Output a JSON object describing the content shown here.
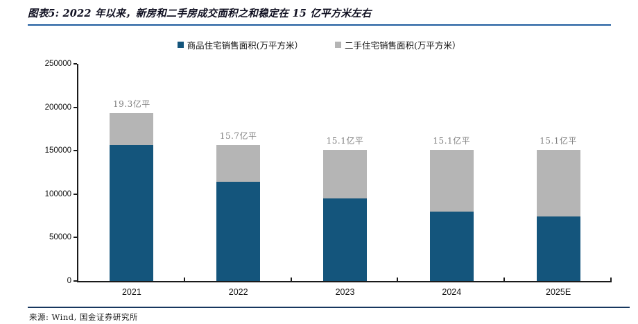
{
  "header": {
    "title": "图表5: 2022 年以来，新房和二手房成交面积之和稳定在 15 亿平方米左右"
  },
  "footer": {
    "source": "来源: Wind, 国金证券研究所"
  },
  "colors": {
    "primary_bar": "#14557C",
    "secondary_bar": "#B5B5B5",
    "title_rule": "#1E5B9E",
    "footer_rule": "#17375E",
    "bar_label_text": "#7f7f7f",
    "axis": "#1a1a1a"
  },
  "chart_data": {
    "type": "bar",
    "stacked": true,
    "title": "2022 年以来，新房和二手房成交面积之和稳定在 15 亿平方米左右",
    "categories": [
      "2021",
      "2022",
      "2023",
      "2024",
      "2025E"
    ],
    "series": [
      {
        "name": "商品住宅销售面积(万平方米）",
        "color_key": "primary_bar",
        "values": [
          156500,
          114600,
          94800,
          80000,
          74000
        ]
      },
      {
        "name": "二手住宅销售面积(万平方米）",
        "color_key": "secondary_bar",
        "values": [
          36500,
          42400,
          56200,
          71000,
          77000
        ]
      }
    ],
    "totals": [
      193000,
      157000,
      151000,
      151000,
      151000
    ],
    "total_labels": [
      "19.3亿平",
      "15.7亿平",
      "15.1亿平",
      "15.1亿平",
      "15.1亿平"
    ],
    "xlabel": "",
    "ylabel": "",
    "ylim": [
      0,
      250000
    ],
    "yticks": [
      0,
      50000,
      100000,
      150000,
      200000,
      250000
    ],
    "grid": false,
    "legend_position": "top-center"
  }
}
